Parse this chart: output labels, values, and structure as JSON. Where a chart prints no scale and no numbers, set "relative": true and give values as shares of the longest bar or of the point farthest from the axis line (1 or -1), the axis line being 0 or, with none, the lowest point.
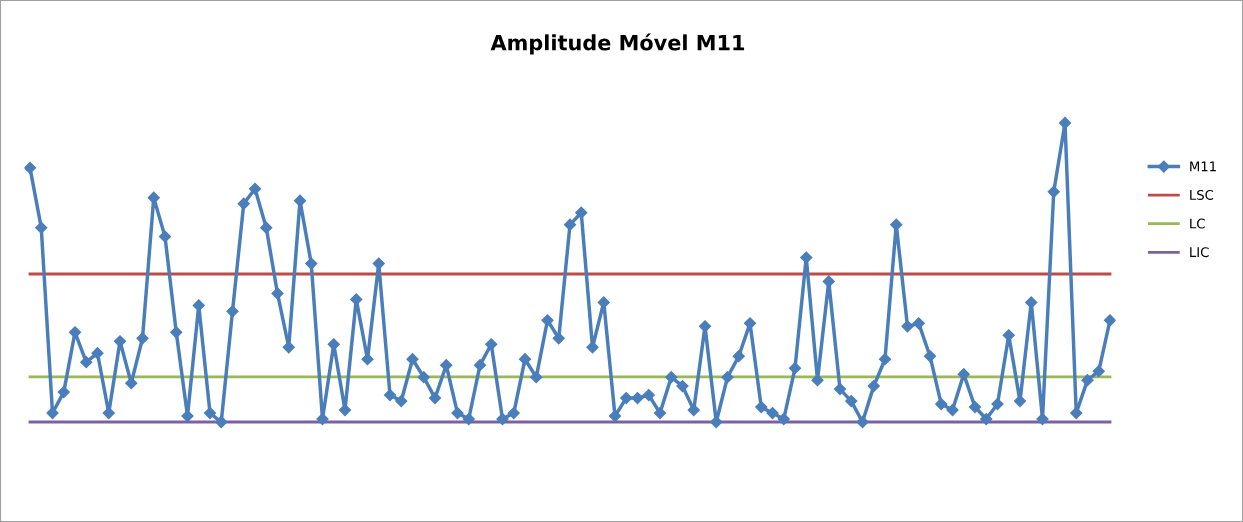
{
  "chart_data": {
    "type": "line",
    "title": "Amplitude Móvel M11",
    "relative": true,
    "legend": "right",
    "marker": "diamond",
    "line_style": "solid",
    "categories": [
      null,
      null,
      null,
      null,
      null,
      null,
      null,
      null,
      null,
      null,
      null,
      null,
      null,
      null,
      null,
      null,
      null,
      null,
      null,
      null,
      null,
      null,
      null,
      null,
      null,
      null,
      null,
      null,
      null,
      null,
      null,
      null,
      null,
      null,
      null,
      null,
      null,
      null,
      null,
      null,
      null,
      null,
      null,
      null,
      null,
      null,
      null,
      null,
      null,
      null,
      null,
      null,
      null,
      null,
      null,
      null,
      null,
      null,
      null,
      null,
      null,
      null,
      null,
      null,
      null,
      null,
      null,
      null,
      null,
      null,
      null,
      null,
      null,
      null,
      null,
      null,
      null,
      null,
      null,
      null,
      null,
      null,
      null,
      null,
      null,
      null,
      null,
      null,
      null,
      null,
      null,
      null,
      null,
      null,
      null,
      null,
      null
    ],
    "series": [
      {
        "name": "M11",
        "color": "#4a7ebb",
        "values": [
          0.85,
          0.65,
          0.03,
          0.1,
          0.3,
          0.2,
          0.23,
          0.03,
          0.27,
          0.13,
          0.28,
          0.75,
          0.62,
          0.3,
          0.02,
          0.39,
          0.03,
          0,
          0.37,
          0.73,
          0.78,
          0.65,
          0.43,
          0.25,
          0.74,
          0.53,
          0.01,
          0.26,
          0.04,
          0.41,
          0.21,
          0.53,
          0.09,
          0.07,
          0.21,
          0.15,
          0.08,
          0.19,
          0.03,
          0.01,
          0.19,
          0.26,
          0.01,
          0.03,
          0.21,
          0.15,
          0.34,
          0.28,
          0.66,
          0.7,
          0.25,
          0.4,
          0.02,
          0.08,
          0.08,
          0.09,
          0.03,
          0.15,
          0.12,
          0.04,
          0.32,
          0.0,
          0.15,
          0.22,
          0.33,
          0.05,
          0.03,
          0.01,
          0.18,
          0.55,
          0.14,
          0.47,
          0.11,
          0.07,
          0,
          0.12,
          0.21,
          0.66,
          0.32,
          0.33,
          0.22,
          0.06,
          0.04,
          0.16,
          0.05,
          0.01,
          0.06,
          0.29,
          0.07,
          0.4,
          0.01,
          0.77,
          1,
          0.03,
          0.14,
          0.17,
          0.34
        ]
      }
    ],
    "ref_lines": [
      {
        "axis": "y",
        "value": 0.495,
        "label": "LSC",
        "color": "#be4b48",
        "line_style": "solid"
      },
      {
        "axis": "y",
        "value": 0.151,
        "label": "LC",
        "color": "#98b954",
        "line_style": "solid"
      },
      {
        "axis": "y",
        "value": 0,
        "label": "LIC",
        "color": "#7d60a0",
        "line_style": "solid"
      }
    ]
  }
}
